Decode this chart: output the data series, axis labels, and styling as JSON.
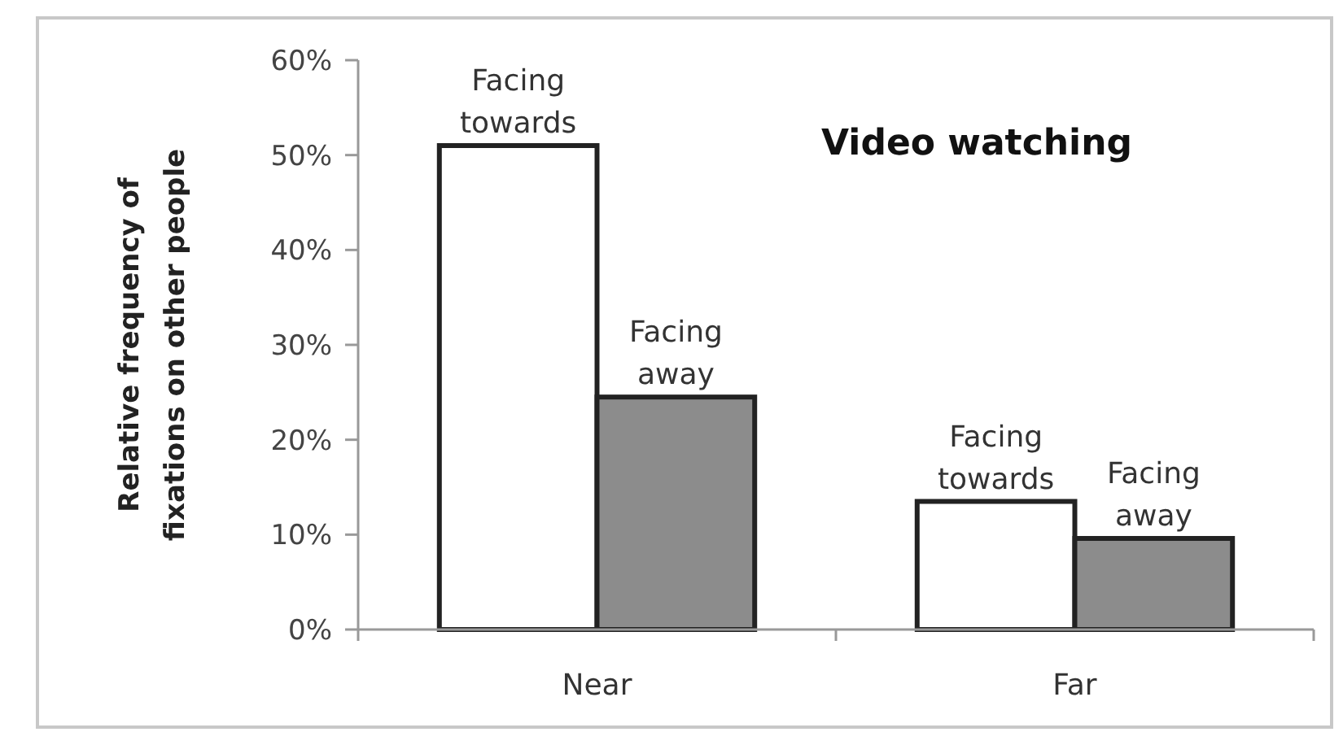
{
  "chart_data": {
    "type": "bar",
    "title": "Video watching",
    "ylabel": "Relative frequency of fixations on other people",
    "categories": [
      "Near",
      "Far"
    ],
    "series": [
      {
        "name": "Facing towards",
        "color": "#ffffff",
        "values": [
          51,
          13.5
        ]
      },
      {
        "name": "Facing away",
        "color": "#8c8c8c",
        "values": [
          24.5,
          9.6
        ]
      }
    ],
    "ylim": [
      0,
      60
    ],
    "yticks": [
      {
        "value": 0,
        "label": "0%"
      },
      {
        "value": 10,
        "label": "10%"
      },
      {
        "value": 20,
        "label": "20%"
      },
      {
        "value": 30,
        "label": "30%"
      },
      {
        "value": 40,
        "label": "40%"
      },
      {
        "value": 50,
        "label": "50%"
      },
      {
        "value": 60,
        "label": "60%"
      }
    ],
    "grid": false
  }
}
